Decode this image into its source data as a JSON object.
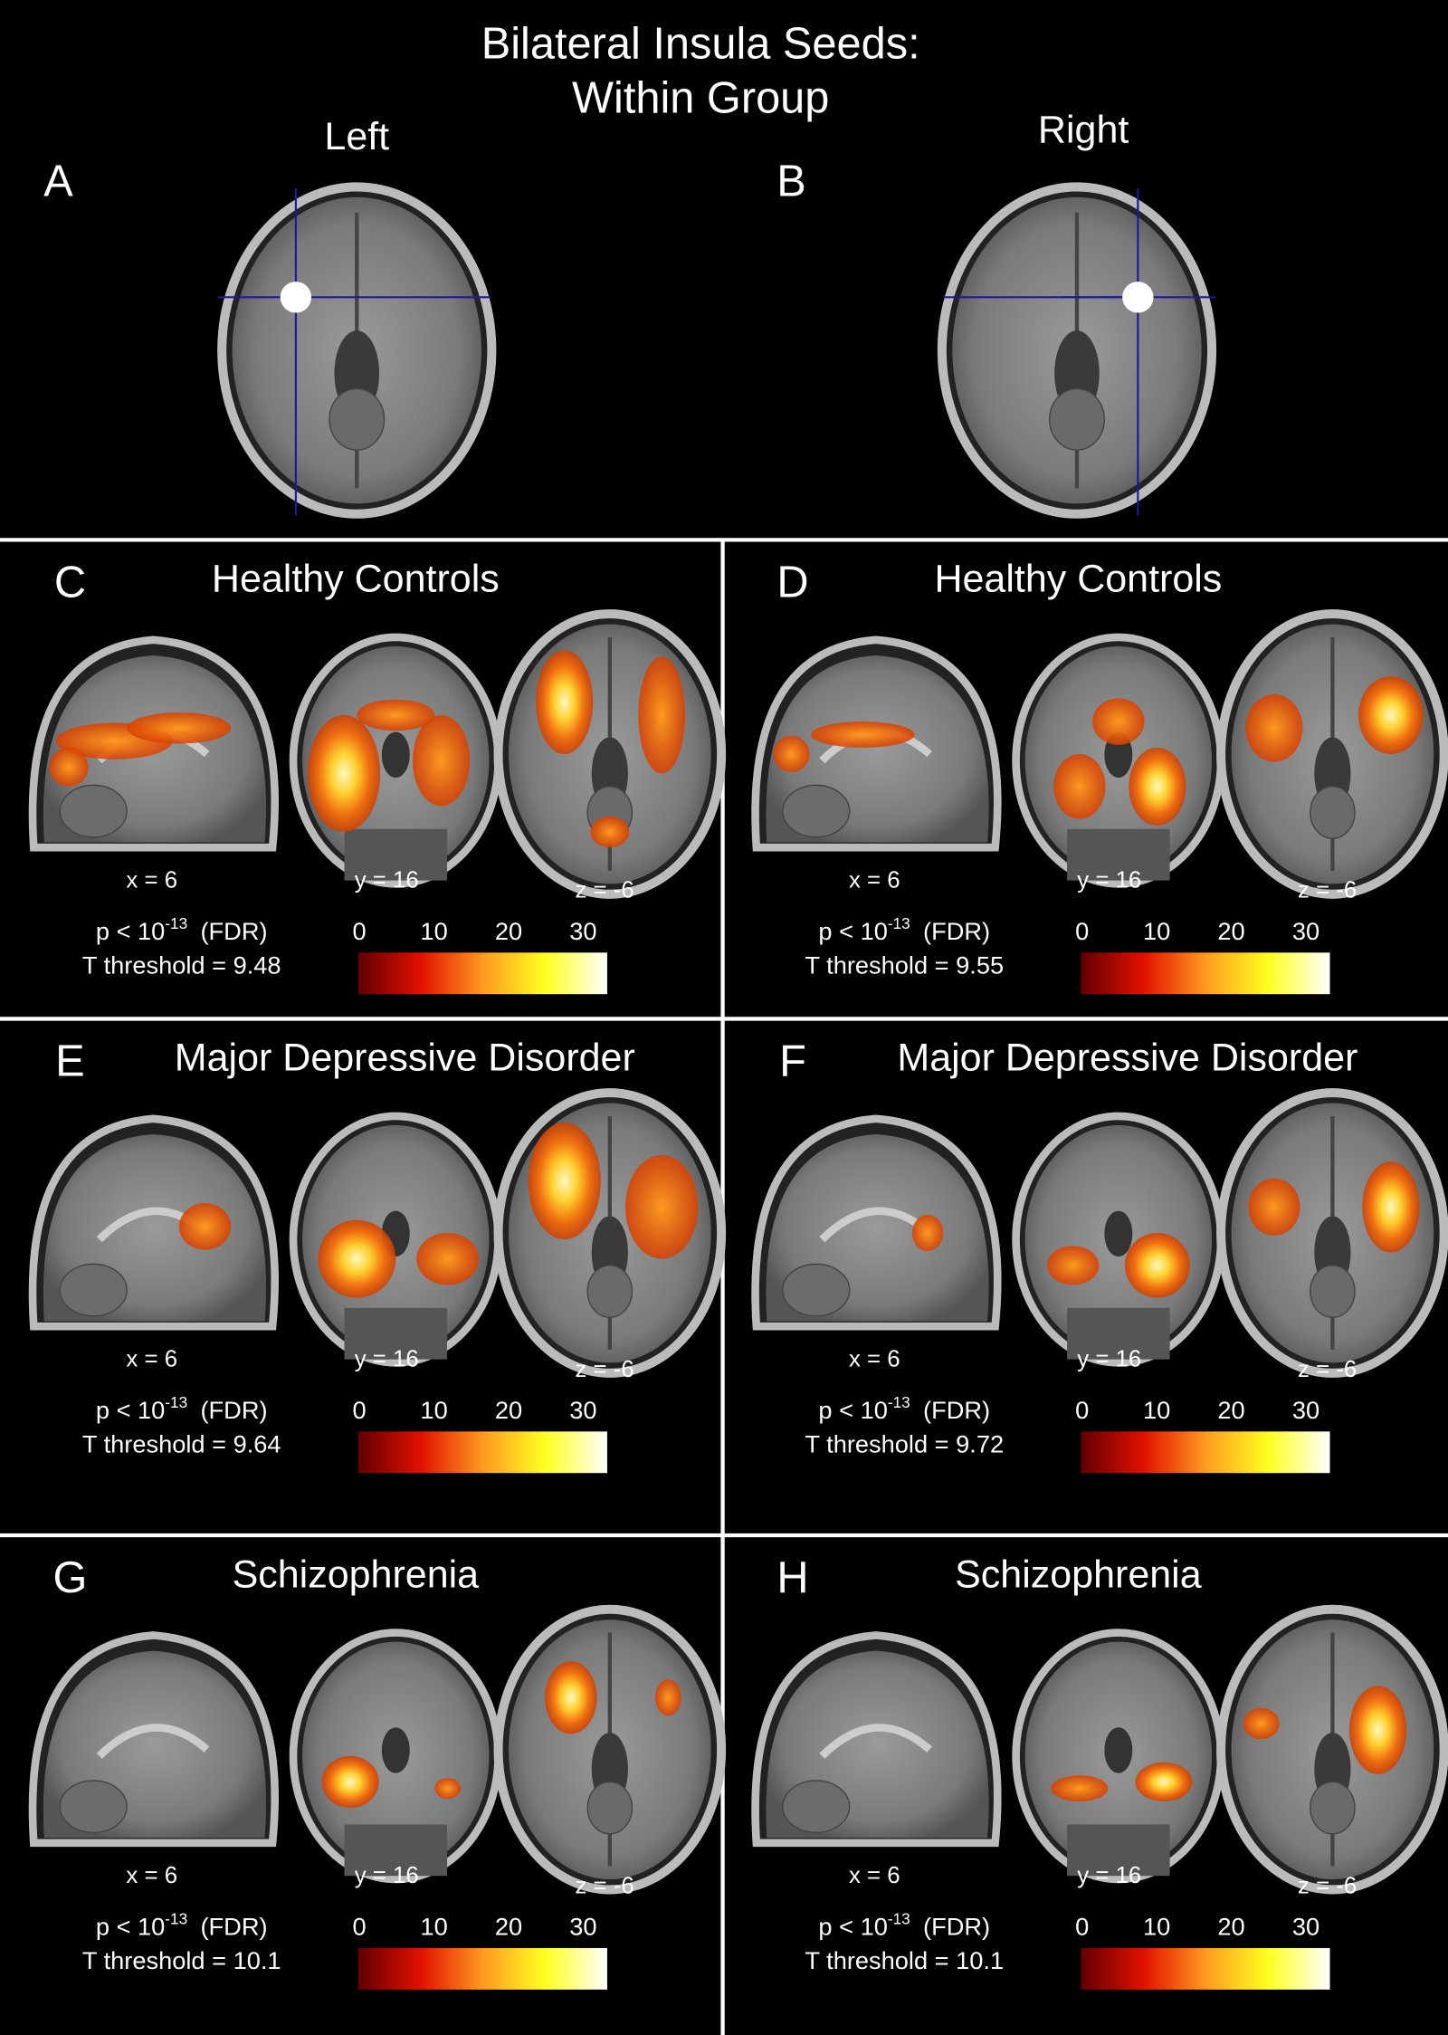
{
  "title": {
    "lines": [
      "Bilateral Insula Seeds:",
      "Within Group"
    ]
  },
  "seeds": [
    {
      "letter": "A",
      "label": "Left"
    },
    {
      "letter": "B",
      "label": "Right"
    }
  ],
  "panels": [
    {
      "letter": "C",
      "title": "Healthy Controls",
      "slices": [
        "x = 6",
        "y = 16",
        "z = -6"
      ],
      "p_base": "p < 10",
      "p_exp": "-13",
      "p_method": "(FDR)",
      "threshold": "T threshold = 9.48",
      "colorbar_ticks": [
        0,
        10,
        20,
        30
      ]
    },
    {
      "letter": "D",
      "title": "Healthy Controls",
      "slices": [
        "x = 6",
        "y = 16",
        "z = -6"
      ],
      "p_base": "p < 10",
      "p_exp": "-13",
      "p_method": "(FDR)",
      "threshold": "T threshold = 9.55",
      "colorbar_ticks": [
        0,
        10,
        20,
        30
      ]
    },
    {
      "letter": "E",
      "title": "Major Depressive Disorder",
      "slices": [
        "x = 6",
        "y = 16",
        "z = -6"
      ],
      "p_base": "p < 10",
      "p_exp": "-13",
      "p_method": "(FDR)",
      "threshold": "T threshold = 9.64",
      "colorbar_ticks": [
        0,
        10,
        20,
        30
      ]
    },
    {
      "letter": "F",
      "title": "Major Depressive Disorder",
      "slices": [
        "x = 6",
        "y = 16",
        "z = -6"
      ],
      "p_base": "p < 10",
      "p_exp": "-13",
      "p_method": "(FDR)",
      "threshold": "T threshold = 9.72",
      "colorbar_ticks": [
        0,
        10,
        20,
        30
      ]
    },
    {
      "letter": "G",
      "title": "Schizophrenia",
      "slices": [
        "x = 6",
        "y = 16",
        "z = -6"
      ],
      "p_base": "p < 10",
      "p_exp": "-13",
      "p_method": "(FDR)",
      "threshold": "T threshold = 10.1",
      "colorbar_ticks": [
        0,
        10,
        20,
        30
      ]
    },
    {
      "letter": "H",
      "title": "Schizophrenia",
      "slices": [
        "x = 6",
        "y = 16",
        "z = -6"
      ],
      "p_base": "p < 10",
      "p_exp": "-13",
      "p_method": "(FDR)",
      "threshold": "T threshold = 10.1",
      "colorbar_ticks": [
        0,
        10,
        20,
        30
      ]
    }
  ]
}
